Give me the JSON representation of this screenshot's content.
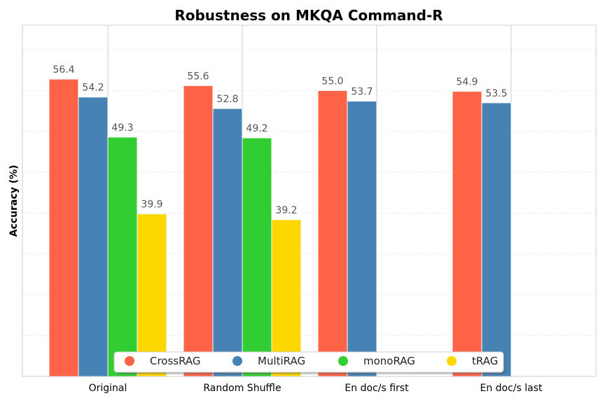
{
  "chart_data": {
    "type": "bar",
    "title": "Robustness on MKQA Command-R",
    "xlabel": "",
    "ylabel": "Accuracy (%)",
    "categories": [
      "Original",
      "Random Shuffle",
      "En doc/s first",
      "En doc/s last"
    ],
    "series": [
      {
        "name": "CrossRAG",
        "color": "#FF6347",
        "values": [
          56.4,
          55.6,
          55.0,
          54.9
        ]
      },
      {
        "name": "MultiRAG",
        "color": "#4682B4",
        "values": [
          54.2,
          52.8,
          53.7,
          53.5
        ]
      },
      {
        "name": "monoRAG",
        "color": "#32CD32",
        "values": [
          49.3,
          49.2,
          null,
          null
        ]
      },
      {
        "name": "tRAG",
        "color": "#FFD700",
        "values": [
          39.9,
          39.2,
          null,
          null
        ]
      }
    ],
    "ylim": [
      20,
      63
    ],
    "grid": true,
    "legend_position": "bottom-center"
  }
}
